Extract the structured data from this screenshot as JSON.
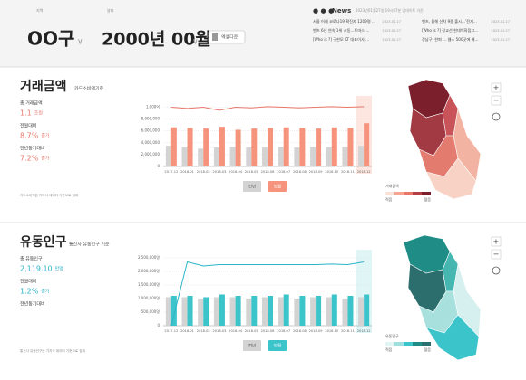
{
  "header": {
    "region_label": "지역",
    "region": "OO구",
    "date_label": "날짜",
    "date": "2000년 00월",
    "button": "엑셀다운"
  },
  "news": {
    "title": "News",
    "updated": "2023년01월27일 19시07분 업데이트 기준",
    "items": [
      {
        "text": "서울 어제 코로나19 확진자 1209명 ...",
        "date": "2023.01.27"
      },
      {
        "text": "벤츠, 올해 신차 9종 출시...'전기...",
        "date": "2023.01.27"
      },
      {
        "text": "벤츠 6년 연속 1위 시동...토마스 ...",
        "date": "2023.01.27"
      },
      {
        "text": "[Who is ?] 정교선 현대백화점그...",
        "date": "2023.01.27"
      },
      {
        "text": "[Who is ?] 구현모 KT 대표이사 ...",
        "date": "2023.01.27"
      },
      {
        "text": "강남구, 한파 ... 웹스 500곳에 배...",
        "date": "2023.01.27"
      }
    ]
  },
  "sections": [
    {
      "title": "거래금액",
      "subtitle": "카드소비액기준",
      "stats": [
        {
          "label": "총 거래금액",
          "value": "1.1",
          "unit": "조원"
        },
        {
          "label": "전월대비",
          "value": "8.7%",
          "unit": "증가"
        },
        {
          "label": "전년동기대비",
          "value": "7.2%",
          "unit": "증가"
        }
      ],
      "note": "카드소비액은 카드사 데이터 기준으로 집계",
      "map_legend": {
        "title": "거래금액",
        "low": "적음",
        "high": "많음"
      },
      "chart_data": {
        "type": "bar",
        "categories": [
          "2017.12",
          "2018.01",
          "2018.02",
          "2018.03",
          "2018.04",
          "2018.05",
          "2018.06",
          "2018.07",
          "2018.08",
          "2018.09",
          "2018.10",
          "2018.11",
          "2018.12"
        ],
        "series": [
          {
            "name": "전년",
            "color": "#d3d3d3",
            "values": [
              3500000,
              3200000,
              3000000,
              3200000,
              3300000,
              3200000,
              3200000,
              3300000,
              3200000,
              3300000,
              3200000,
              3300000,
              3500000
            ]
          },
          {
            "name": "당월",
            "color": "#f5937d",
            "values": [
              6600000,
              6500000,
              6400000,
              6700000,
              6200000,
              6400000,
              6500000,
              6600000,
              6500000,
              6400000,
              6600000,
              6500000,
              7300000
            ]
          },
          {
            "type": "line",
            "color": "#e8776a",
            "axis": "y2",
            "values": [
              1000,
              980,
              1000,
              950,
              1000,
              990,
              1010,
              1000,
              990,
              1000,
              1010,
              1000,
              1010
            ]
          }
        ],
        "ylim": [
          0,
          11000000
        ],
        "yticks": [
          0,
          {
            "value": 2000000,
            "label": "2,000,000"
          },
          {
            "value": 4000000,
            "label": "4,000,000"
          },
          {
            "value": 6000000,
            "label": "6,000,000"
          },
          {
            "value": 8000000,
            "label": "8,000,000"
          }
        ],
        "y2lim": [
          0,
          1100
        ],
        "y2ticks": [
          {
            "value": 1000,
            "label": "1,000억"
          }
        ],
        "grid": true
      }
    },
    {
      "title": "유동인구",
      "subtitle": "통신사 유동인구 기준",
      "stats": [
        {
          "label": "총 유동인구",
          "value": "2,119.10",
          "unit": "만명"
        },
        {
          "label": "전월대비",
          "value": "1.2%",
          "unit": "증가"
        },
        {
          "label": "전년동기대비"
        }
      ],
      "note": "통신사 유동인구는 기지국 데이터 기준으로 집계",
      "map_legend": {
        "title": "유동인구",
        "low": "적음",
        "high": "많음"
      },
      "chart_data": {
        "type": "bar",
        "categories": [
          "2017.12",
          "2018.01",
          "2018.02",
          "2018.03",
          "2018.04",
          "2018.05",
          "2018.06",
          "2018.07",
          "2018.08",
          "2018.09",
          "2018.10",
          "2018.11",
          "2018.12"
        ],
        "series": [
          {
            "name": "전년",
            "color": "#d3d3d3",
            "values": [
              1050000,
              1050000,
              1000000,
              1050000,
              1050000,
              1000000,
              1050000,
              1050000,
              1000000,
              1050000,
              1050000,
              1000000,
              1050000
            ]
          },
          {
            "name": "당월",
            "color": "#3cc4cb",
            "values": [
              1100000,
              1100000,
              1050000,
              1150000,
              1100000,
              1100000,
              1100000,
              1150000,
              1100000,
              1100000,
              1150000,
              1100000,
              1150000
            ]
          },
          {
            "type": "line",
            "color": "#2bb5c8",
            "values": [
              0,
              2350000,
              2200000,
              2250000,
              2250000,
              2250000,
              2250000,
              2250000,
              2250000,
              2250000,
              2270000,
              2250000,
              2350000
            ]
          }
        ],
        "ylim": [
          0,
          2600000
        ],
        "yticks": [
          {
            "value": 0,
            "label": "0"
          },
          {
            "value": 500000,
            "label": "500,000명"
          },
          {
            "value": 1000000,
            "label": "1,000,000명"
          },
          {
            "value": 1500000,
            "label": "1,500,000명"
          },
          {
            "value": 2000000,
            "label": "2,000,000명"
          },
          {
            "value": 2500000,
            "label": "2,500,000명"
          }
        ],
        "grid": true
      }
    }
  ]
}
